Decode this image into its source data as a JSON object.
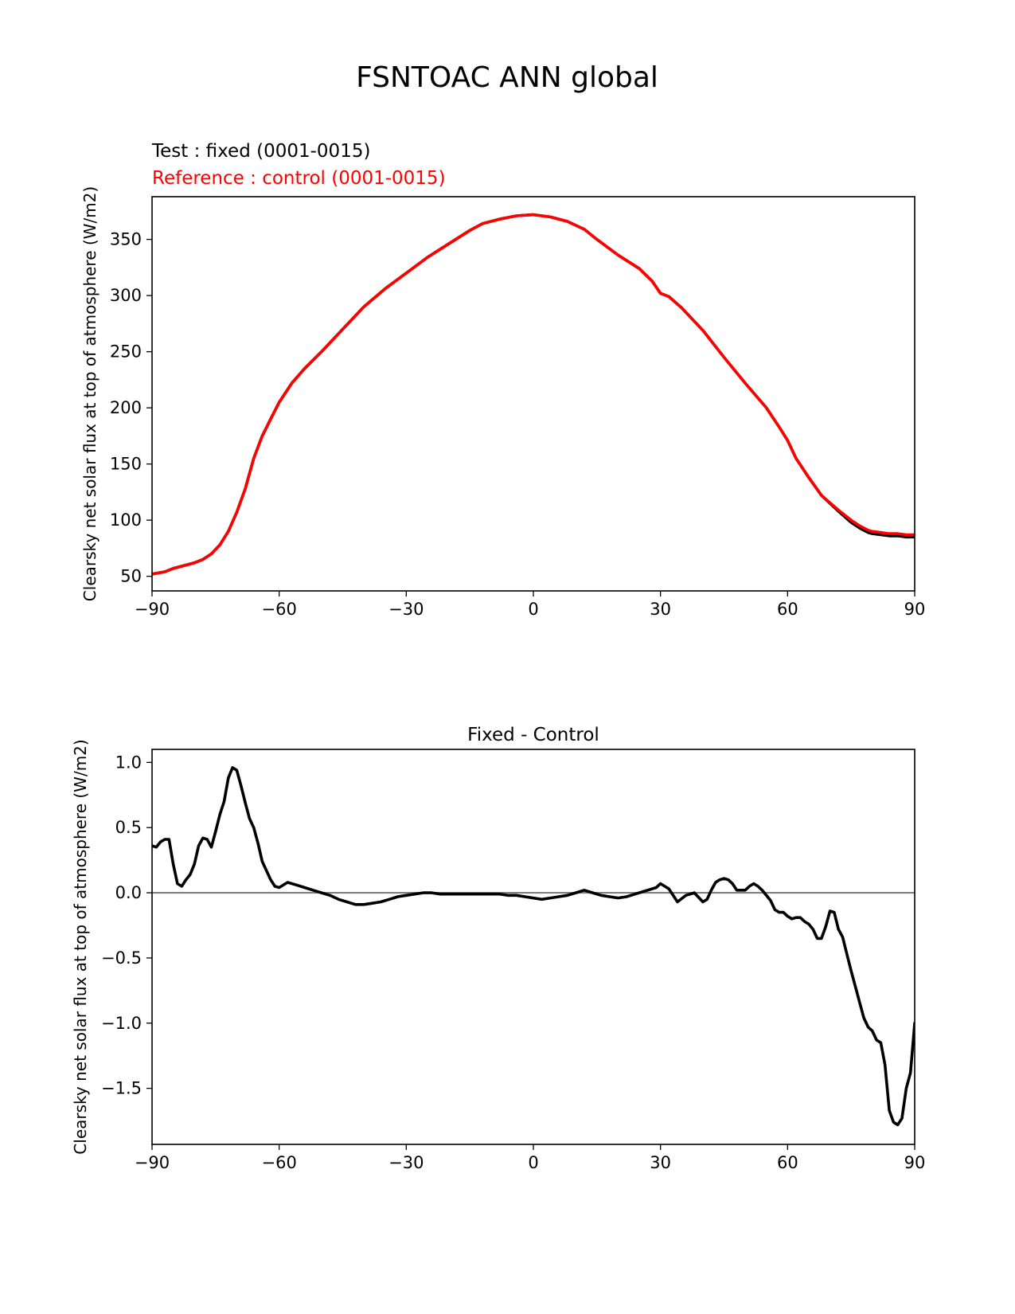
{
  "figure": {
    "suptitle": "FSNTOAC ANN global"
  },
  "chart_data": [
    {
      "type": "line",
      "title_lines": [
        {
          "text": "Test : fixed (0001-0015)",
          "color": "#000000"
        },
        {
          "text": "Reference : control (0001-0015)",
          "color": "#ff0000"
        }
      ],
      "ylabel": "Clearsky net solar flux at top of atmosphere (W/m2)",
      "xlim": [
        -90,
        90
      ],
      "ylim": [
        37,
        388
      ],
      "xticks": [
        -90,
        -60,
        -30,
        0,
        30,
        60,
        90
      ],
      "xtick_labels": [
        "−90",
        "−60",
        "−30",
        "0",
        "30",
        "60",
        "90"
      ],
      "yticks": [
        50,
        100,
        150,
        200,
        250,
        300,
        350
      ],
      "ytick_labels": [
        "50",
        "100",
        "150",
        "200",
        "250",
        "300",
        "350"
      ],
      "grid": false,
      "series": [
        {
          "name": "fixed",
          "color": "#000000",
          "x": [
            -90,
            -87,
            -85,
            -83,
            -80,
            -78,
            -76,
            -74,
            -72,
            -70,
            -68,
            -66,
            -64,
            -62,
            -60,
            -57,
            -54,
            -50,
            -45,
            -40,
            -35,
            -30,
            -25,
            -20,
            -15,
            -12,
            -8,
            -4,
            0,
            4,
            8,
            12,
            15,
            20,
            25,
            28,
            30,
            32,
            35,
            40,
            45,
            50,
            55,
            58,
            60,
            62,
            65,
            68,
            72,
            75,
            77,
            79,
            80,
            82,
            84,
            86,
            88,
            90
          ],
          "values": [
            52,
            54,
            57,
            59,
            62,
            65,
            70,
            78,
            90,
            107,
            128,
            155,
            175,
            190,
            205,
            222,
            235,
            250,
            270,
            290,
            306,
            320,
            334,
            346,
            358,
            364,
            368,
            371,
            372,
            370,
            366,
            359,
            350,
            336,
            324,
            313,
            302,
            299,
            289,
            269,
            245,
            222,
            200,
            183,
            171,
            155,
            138,
            122,
            108,
            98,
            93,
            89,
            88,
            87,
            86,
            86,
            85,
            85
          ]
        },
        {
          "name": "control",
          "color": "#ff0000",
          "x": [
            -90,
            -87,
            -85,
            -83,
            -80,
            -78,
            -76,
            -74,
            -72,
            -70,
            -68,
            -66,
            -64,
            -62,
            -60,
            -57,
            -54,
            -50,
            -45,
            -40,
            -35,
            -30,
            -25,
            -20,
            -15,
            -12,
            -8,
            -4,
            0,
            4,
            8,
            12,
            15,
            20,
            25,
            28,
            30,
            32,
            35,
            40,
            45,
            50,
            55,
            58,
            60,
            62,
            65,
            68,
            72,
            75,
            77,
            79,
            80,
            82,
            84,
            86,
            88,
            90
          ],
          "values": [
            52,
            54,
            57,
            59,
            62,
            65,
            70,
            78,
            90,
            107,
            128,
            155,
            175,
            190,
            205,
            222,
            235,
            250,
            270,
            290,
            306,
            320,
            334,
            346,
            358,
            364,
            368,
            371,
            372,
            370,
            366,
            359,
            350,
            336,
            324,
            313,
            302,
            299,
            289,
            269,
            245,
            222,
            200,
            183,
            171,
            155,
            138,
            122,
            109,
            100,
            95,
            91,
            90,
            89,
            88,
            88,
            87,
            87
          ]
        }
      ]
    },
    {
      "type": "line",
      "title": "Fixed - Control",
      "ylabel": "Clearsky net solar flux at top of atmosphere (W/m2)",
      "xlim": [
        -90,
        90
      ],
      "ylim": [
        -1.93,
        1.1
      ],
      "xticks": [
        -90,
        -60,
        -30,
        0,
        30,
        60,
        90
      ],
      "xtick_labels": [
        "−90",
        "−60",
        "−30",
        "0",
        "30",
        "60",
        "90"
      ],
      "yticks": [
        -1.5,
        -1.0,
        -0.5,
        0.0,
        0.5,
        1.0
      ],
      "ytick_labels": [
        "−1.5",
        "−1.0",
        "−0.5",
        "0.0",
        "0.5",
        "1.0"
      ],
      "hline": {
        "y": 0,
        "color": "#808080"
      },
      "grid": false,
      "series": [
        {
          "name": "",
          "color": "#000000",
          "x": [
            -90,
            -89,
            -88,
            -87,
            -86,
            -85,
            -84,
            -83,
            -82,
            -81,
            -80,
            -79,
            -78,
            -77,
            -76,
            -75,
            -74,
            -73,
            -72,
            -71,
            -70,
            -69,
            -68,
            -67,
            -66,
            -65,
            -64,
            -63,
            -62,
            -61,
            -60,
            -58,
            -56,
            -54,
            -52,
            -50,
            -48,
            -46,
            -44,
            -42,
            -40,
            -38,
            -36,
            -34,
            -32,
            -30,
            -28,
            -26,
            -24,
            -22,
            -20,
            -18,
            -16,
            -14,
            -12,
            -10,
            -8,
            -6,
            -4,
            -2,
            0,
            -2,
            2,
            4,
            6,
            8,
            10,
            12,
            14,
            16,
            18,
            20,
            22,
            24,
            26,
            28,
            29,
            30,
            31,
            32,
            34,
            36,
            38,
            40,
            41,
            42,
            43,
            44,
            45,
            46,
            47,
            48,
            49,
            50,
            51,
            52,
            53,
            54,
            55,
            56,
            57,
            58,
            59,
            60,
            61,
            62,
            63,
            64,
            65,
            66,
            67,
            68,
            69,
            70,
            71,
            72,
            73,
            74,
            75,
            76,
            77,
            78,
            79,
            80,
            81,
            82,
            83,
            84,
            85,
            86,
            87,
            88,
            89,
            90
          ],
          "values": [
            0.36,
            0.35,
            0.39,
            0.41,
            0.41,
            0.22,
            0.07,
            0.05,
            0.1,
            0.14,
            0.22,
            0.36,
            0.42,
            0.41,
            0.35,
            0.47,
            0.6,
            0.7,
            0.88,
            0.96,
            0.94,
            0.82,
            0.69,
            0.57,
            0.5,
            0.38,
            0.24,
            0.17,
            0.1,
            0.05,
            0.04,
            0.08,
            0.06,
            0.04,
            0.02,
            0.0,
            -0.02,
            -0.05,
            -0.07,
            -0.09,
            -0.09,
            -0.08,
            -0.07,
            -0.05,
            -0.03,
            -0.02,
            -0.01,
            0.0,
            0.0,
            -0.01,
            -0.01,
            -0.01,
            -0.01,
            -0.01,
            -0.01,
            -0.01,
            -0.01,
            -0.02,
            -0.02,
            -0.03,
            -0.04,
            -0.03,
            -0.05,
            -0.04,
            -0.03,
            -0.02,
            0.0,
            0.02,
            0.0,
            -0.02,
            -0.03,
            -0.04,
            -0.03,
            -0.01,
            0.01,
            0.03,
            0.04,
            0.07,
            0.05,
            0.03,
            -0.07,
            -0.02,
            0.0,
            -0.07,
            -0.05,
            0.02,
            0.08,
            0.1,
            0.11,
            0.1,
            0.07,
            0.02,
            0.02,
            0.02,
            0.05,
            0.07,
            0.05,
            0.02,
            -0.02,
            -0.06,
            -0.13,
            -0.15,
            -0.15,
            -0.18,
            -0.2,
            -0.19,
            -0.19,
            -0.22,
            -0.24,
            -0.28,
            -0.35,
            -0.35,
            -0.26,
            -0.14,
            -0.15,
            -0.28,
            -0.34,
            -0.47,
            -0.6,
            -0.72,
            -0.84,
            -0.96,
            -1.03,
            -1.06,
            -1.13,
            -1.15,
            -1.32,
            -1.67,
            -1.76,
            -1.78,
            -1.73,
            -1.5,
            -1.38,
            -1.0
          ]
        }
      ]
    }
  ]
}
